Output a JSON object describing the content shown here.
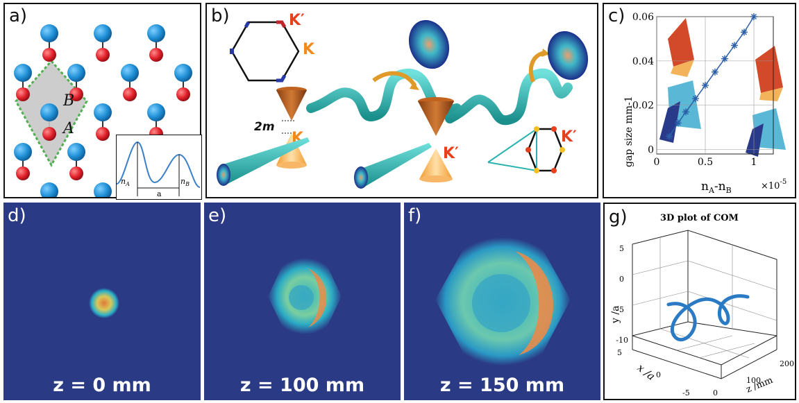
{
  "panels": {
    "a": {
      "label": "a)",
      "site_a": "A",
      "site_b": "B",
      "inset": {
        "n_a": "n",
        "n_a_sub": "A",
        "n_b": "n",
        "n_b_sub": "B",
        "spacing": "a"
      }
    },
    "b": {
      "label": "b)",
      "k_prime_top": "K′",
      "k_top": "K",
      "gap_label": "2m",
      "k_left": "K",
      "k_prime_mid": "K′",
      "k_prime_right": "K′"
    },
    "c": {
      "label": "c)",
      "ylabel": "gap size mm-1",
      "xlabel": "nA-nB",
      "xlabel_main": "n",
      "xlabel_sub1": "A",
      "xlabel_dash": "-n",
      "xlabel_sub2": "B",
      "exponent": "×10",
      "exponent_power": "-5",
      "yticks": [
        "0",
        "0.02",
        "0.04",
        "0.06"
      ],
      "xticks": [
        "0",
        "0.5",
        "1"
      ]
    },
    "d": {
      "label": "d)",
      "caption": "z = 0 mm"
    },
    "e": {
      "label": "e)",
      "caption": "z = 100 mm"
    },
    "f": {
      "label": "f)",
      "caption": "z = 150 mm"
    },
    "g": {
      "label": "g)",
      "title": "3D plot of COM",
      "ylabel": "y /a",
      "xlabel": "x /a",
      "zlabel": "z /mm",
      "yticks": [
        "5",
        "0",
        "-5",
        "-10"
      ],
      "xticks": [
        "5",
        "0",
        "-5"
      ],
      "zticks": [
        "0",
        "100",
        "200"
      ]
    }
  },
  "chart_data": {
    "type": "scatter",
    "xlabel": "nA-nB",
    "ylabel": "gap size mm-1",
    "x_scale_note": "×10-5",
    "xlim": [
      0,
      1.2
    ],
    "ylim": [
      -0.002,
      0.06
    ],
    "x": [
      0.13,
      0.22,
      0.3,
      0.4,
      0.5,
      0.6,
      0.7,
      0.8,
      0.9,
      1.0
    ],
    "y": [
      0.006,
      0.012,
      0.017,
      0.023,
      0.029,
      0.035,
      0.041,
      0.047,
      0.053,
      0.06
    ],
    "marker": "asterisk",
    "line": true,
    "color": "#2b5fa8",
    "grid": true
  },
  "colors": {
    "site_red": "#e0202a",
    "site_blue": "#1f8fd6",
    "teal": "#2bb3b0",
    "orange": "#f08a1c",
    "red_k": "#e8401c",
    "beam_bg": "#2b3a85",
    "series": "#2b5fa8"
  }
}
